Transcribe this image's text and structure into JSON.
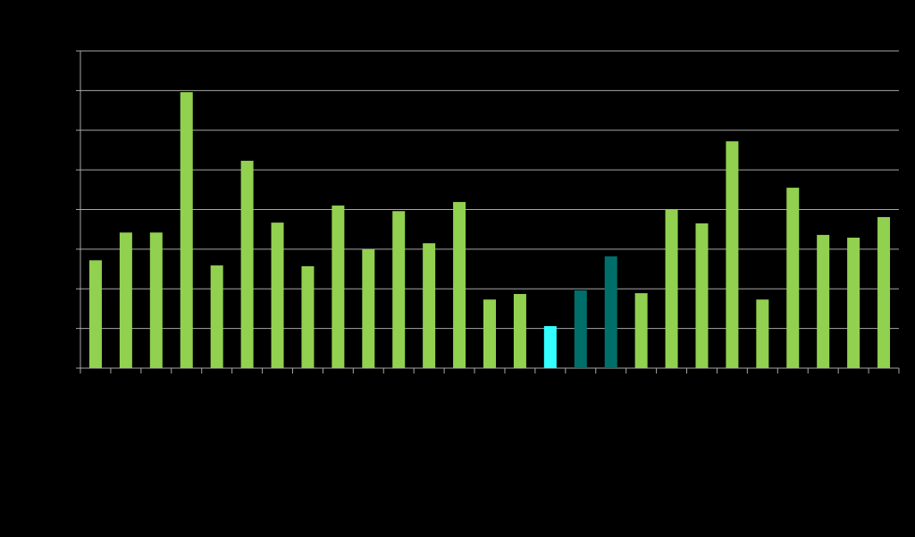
{
  "chart_data": {
    "type": "bar",
    "categories": [
      null,
      null,
      null,
      null,
      null,
      null,
      null,
      null,
      null,
      null,
      null,
      null,
      null,
      null,
      null,
      null,
      null,
      null,
      null,
      null,
      null,
      null,
      null,
      null,
      null,
      null,
      null
    ],
    "values": [
      2.72,
      3.42,
      3.42,
      6.96,
      2.59,
      5.23,
      3.67,
      2.57,
      4.1,
      3.0,
      3.96,
      3.15,
      4.19,
      1.73,
      1.87,
      1.06,
      1.96,
      2.82,
      1.89,
      4.01,
      3.65,
      5.72,
      1.73,
      4.55,
      3.36,
      3.29,
      3.81
    ],
    "colors": [
      "#92d050",
      "#92d050",
      "#92d050",
      "#92d050",
      "#92d050",
      "#92d050",
      "#92d050",
      "#92d050",
      "#92d050",
      "#92d050",
      "#92d050",
      "#92d050",
      "#92d050",
      "#92d050",
      "#92d050",
      "#33ffff",
      "#006f6a",
      "#006f6a",
      "#92d050",
      "#92d050",
      "#92d050",
      "#92d050",
      "#92d050",
      "#92d050",
      "#92d050",
      "#92d050",
      "#92d050"
    ],
    "ylim": [
      0,
      8
    ],
    "yticks": [
      0,
      1,
      2,
      3,
      4,
      5,
      6,
      7,
      8
    ],
    "grid": true
  }
}
